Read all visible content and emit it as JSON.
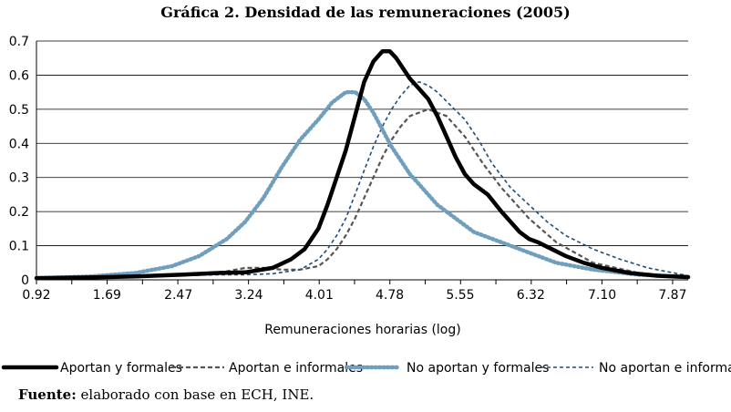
{
  "title": "Gráfica 2. Densidad de las remuneraciones (2005)",
  "source": {
    "label": "Fuente:",
    "text": "elaborado con base en ECH, INE."
  },
  "chart_data": {
    "type": "line",
    "title": "Gráfica 2. Densidad de las remuneraciones (2005)",
    "xlabel": "Remuneraciones horarias (log)",
    "ylabel": "",
    "xlim": [
      0.92,
      8.04
    ],
    "ylim": [
      0,
      0.7
    ],
    "x_ticks": [
      0.92,
      1.69,
      2.47,
      3.24,
      4.01,
      4.78,
      5.55,
      6.32,
      7.1,
      7.87
    ],
    "x_tick_labels": [
      "0.92",
      "1.69",
      "2.47",
      "3.24",
      "4.01",
      "4.78",
      "5.55",
      "6.32",
      "7.10",
      "7.87"
    ],
    "y_ticks": [
      0,
      0.1,
      0.2,
      0.3,
      0.4,
      0.5,
      0.6,
      0.7
    ],
    "y_tick_labels": [
      "0",
      "0.1",
      "0.2",
      "0.3",
      "0.4",
      "0.5",
      "0.6",
      "0.7"
    ],
    "grid": "horizontal",
    "legend_position": "bottom",
    "series": [
      {
        "name": "Aportan y formales",
        "color": "#000000",
        "style": "solid-thick",
        "x": [
          0.92,
          1.5,
          2.0,
          2.5,
          2.9,
          3.2,
          3.5,
          3.7,
          3.85,
          4.0,
          4.1,
          4.2,
          4.3,
          4.4,
          4.5,
          4.6,
          4.7,
          4.78,
          4.85,
          5.0,
          5.1,
          5.2,
          5.3,
          5.4,
          5.5,
          5.6,
          5.7,
          5.85,
          6.0,
          6.1,
          6.2,
          6.3,
          6.4,
          6.55,
          6.7,
          6.9,
          7.1,
          7.4,
          7.7,
          8.04
        ],
        "y": [
          0.005,
          0.007,
          0.01,
          0.015,
          0.02,
          0.022,
          0.035,
          0.06,
          0.09,
          0.15,
          0.22,
          0.3,
          0.38,
          0.48,
          0.58,
          0.64,
          0.67,
          0.67,
          0.65,
          0.59,
          0.56,
          0.53,
          0.48,
          0.42,
          0.36,
          0.31,
          0.28,
          0.25,
          0.2,
          0.17,
          0.14,
          0.12,
          0.11,
          0.09,
          0.07,
          0.05,
          0.035,
          0.02,
          0.012,
          0.008
        ]
      },
      {
        "name": "Aportan e informales",
        "color": "#555555",
        "style": "dashed-gray",
        "x": [
          0.92,
          1.5,
          2.0,
          2.5,
          2.8,
          3.0,
          3.2,
          3.4,
          3.6,
          3.8,
          4.0,
          4.1,
          4.2,
          4.3,
          4.4,
          4.5,
          4.6,
          4.7,
          4.8,
          4.9,
          5.0,
          5.2,
          5.4,
          5.6,
          5.8,
          6.0,
          6.3,
          6.6,
          7.0,
          7.5,
          8.04
        ],
        "y": [
          0.005,
          0.006,
          0.01,
          0.015,
          0.02,
          0.025,
          0.035,
          0.035,
          0.03,
          0.03,
          0.04,
          0.06,
          0.09,
          0.13,
          0.18,
          0.24,
          0.3,
          0.36,
          0.41,
          0.45,
          0.48,
          0.5,
          0.48,
          0.42,
          0.34,
          0.27,
          0.18,
          0.11,
          0.05,
          0.02,
          0.008
        ]
      },
      {
        "name": "No aportan y formales",
        "color": "#6f9fbd",
        "style": "dotted-thick",
        "x": [
          0.92,
          1.5,
          2.0,
          2.4,
          2.7,
          3.0,
          3.2,
          3.4,
          3.6,
          3.8,
          4.0,
          4.15,
          4.3,
          4.4,
          4.5,
          4.6,
          4.7,
          4.8,
          4.9,
          5.0,
          5.1,
          5.2,
          5.3,
          5.5,
          5.7,
          6.0,
          6.3,
          6.6,
          7.0,
          7.5,
          8.04
        ],
        "y": [
          0.005,
          0.01,
          0.02,
          0.04,
          0.07,
          0.12,
          0.17,
          0.24,
          0.33,
          0.41,
          0.47,
          0.52,
          0.55,
          0.55,
          0.53,
          0.49,
          0.44,
          0.39,
          0.35,
          0.31,
          0.28,
          0.25,
          0.22,
          0.18,
          0.14,
          0.11,
          0.08,
          0.05,
          0.03,
          0.015,
          0.008
        ]
      },
      {
        "name": "No aportan e informale",
        "color": "#1f4e79",
        "style": "dashed-thin",
        "x": [
          0.92,
          1.5,
          2.0,
          2.5,
          2.9,
          3.2,
          3.5,
          3.8,
          4.0,
          4.1,
          4.2,
          4.3,
          4.4,
          4.5,
          4.6,
          4.7,
          4.8,
          4.9,
          5.0,
          5.1,
          5.2,
          5.3,
          5.45,
          5.6,
          5.75,
          5.9,
          6.1,
          6.3,
          6.5,
          6.7,
          7.0,
          7.3,
          7.6,
          8.04
        ],
        "y": [
          0.005,
          0.006,
          0.008,
          0.012,
          0.015,
          0.015,
          0.018,
          0.03,
          0.06,
          0.09,
          0.13,
          0.18,
          0.25,
          0.32,
          0.39,
          0.45,
          0.5,
          0.54,
          0.57,
          0.58,
          0.57,
          0.55,
          0.51,
          0.47,
          0.41,
          0.34,
          0.27,
          0.22,
          0.17,
          0.13,
          0.09,
          0.06,
          0.035,
          0.012
        ]
      }
    ]
  }
}
